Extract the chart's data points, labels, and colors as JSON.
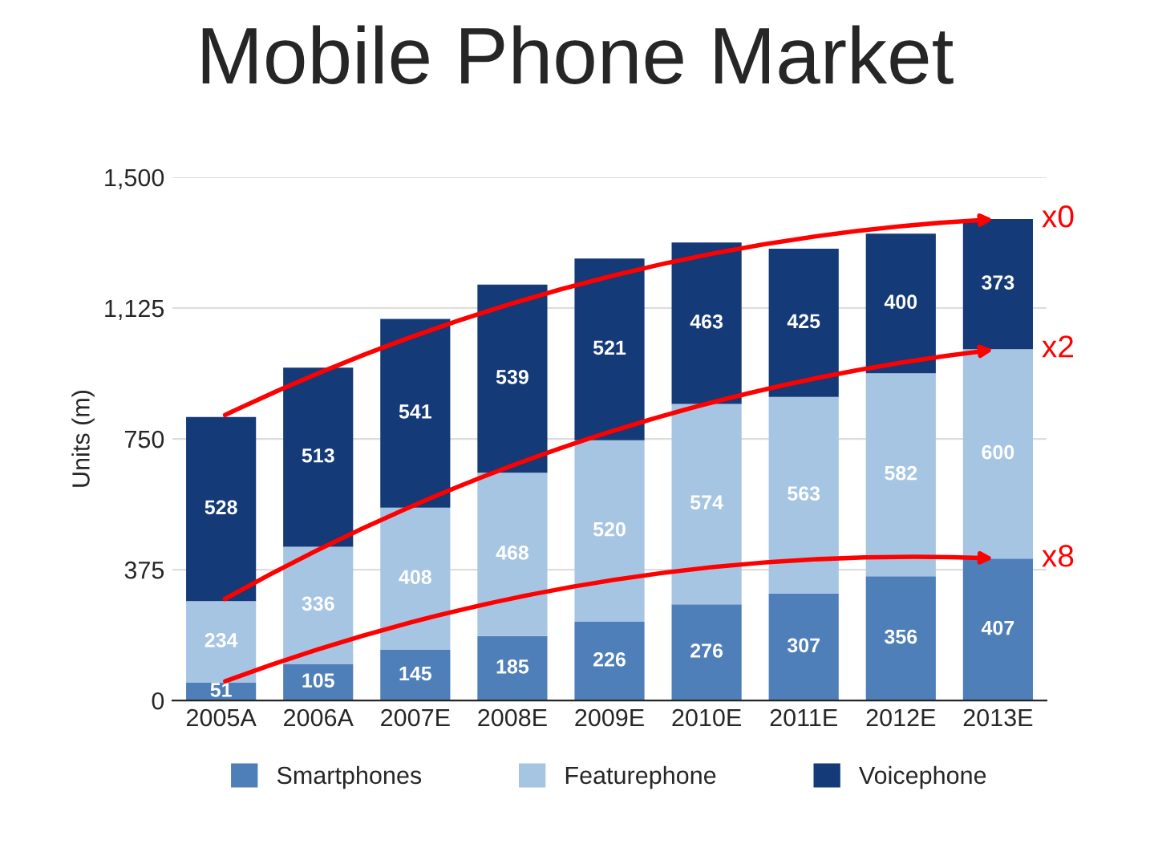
{
  "chart_data": {
    "type": "bar",
    "title": "Mobile Phone Market",
    "ylabel": "Units (m)",
    "categories": [
      "2005A",
      "2006A",
      "2007E",
      "2008E",
      "2009E",
      "2010E",
      "2011E",
      "2012E",
      "2013E"
    ],
    "stacked": true,
    "data_labels": true,
    "grid": "y",
    "legend": "bottom",
    "ylim": [
      0,
      1500
    ],
    "yticks": [
      0,
      375,
      750,
      {
        "value": 1125,
        "label": "1,125"
      },
      {
        "value": 1500,
        "label": "1,500"
      }
    ],
    "series": [
      {
        "name": "Smartphones",
        "color": "#4f7fb8",
        "values": [
          51,
          105,
          145,
          185,
          226,
          276,
          307,
          356,
          407
        ]
      },
      {
        "name": "Featurephone",
        "color": "#a6c5e3",
        "values": [
          234,
          336,
          408,
          468,
          520,
          574,
          563,
          582,
          600
        ]
      },
      {
        "name": "Voicephone",
        "color": "#143a78",
        "values": [
          528,
          513,
          541,
          539,
          521,
          463,
          425,
          400,
          373
        ]
      }
    ],
    "annotations": [
      {
        "text": "x0",
        "x": "2013E",
        "y": 1380
      },
      {
        "text": "x2",
        "x": "2013E",
        "y": 1007
      },
      {
        "text": "x8",
        "x": "2013E",
        "y": 407
      }
    ]
  }
}
